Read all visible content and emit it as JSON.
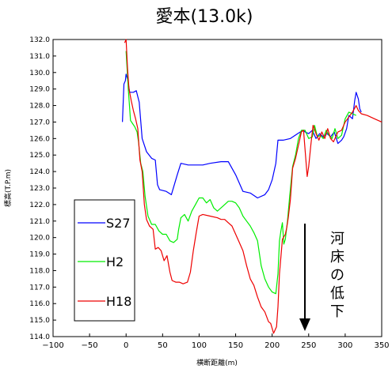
{
  "chart_data": {
    "type": "line",
    "title": "愛本(13.0k)",
    "xlabel": "横断距離(m)",
    "ylabel": "標高(T.P.m)",
    "xlim": [
      -100,
      350
    ],
    "ylim": [
      114.0,
      132.0
    ],
    "xticks": [
      -100,
      -50,
      0,
      50,
      100,
      150,
      200,
      250,
      300,
      350
    ],
    "xtick_labels": [
      "−100",
      "−50",
      "0",
      "50",
      "100",
      "150",
      "200",
      "250",
      "300",
      "350"
    ],
    "yticks": [
      114,
      115,
      116,
      117,
      118,
      119,
      120,
      121,
      122,
      123,
      124,
      125,
      126,
      127,
      128,
      129,
      130,
      131,
      132
    ],
    "ytick_labels": [
      "114.0",
      "115.0",
      "116.0",
      "117.0",
      "118.0",
      "119.0",
      "120.0",
      "121.0",
      "122.0",
      "123.0",
      "124.0",
      "125.0",
      "126.0",
      "127.0",
      "128.0",
      "129.0",
      "130.0",
      "131.0",
      "132.0"
    ],
    "grid": false,
    "legend": "left",
    "annotation": "河床の低下",
    "series": [
      {
        "name": "S27",
        "color": "#0000ff",
        "points": [
          [
            -5,
            127.0
          ],
          [
            -3,
            129.3
          ],
          [
            -1,
            129.5
          ],
          [
            0,
            129.9
          ],
          [
            2,
            129.6
          ],
          [
            5,
            128.8
          ],
          [
            10,
            128.8
          ],
          [
            14,
            128.9
          ],
          [
            18,
            128.2
          ],
          [
            22,
            126.0
          ],
          [
            28,
            125.2
          ],
          [
            35,
            124.8
          ],
          [
            40,
            124.7
          ],
          [
            43,
            123.2
          ],
          [
            46,
            122.9
          ],
          [
            55,
            122.8
          ],
          [
            62,
            122.6
          ],
          [
            70,
            123.8
          ],
          [
            75,
            124.5
          ],
          [
            85,
            124.4
          ],
          [
            95,
            124.4
          ],
          [
            105,
            124.4
          ],
          [
            115,
            124.5
          ],
          [
            130,
            124.6
          ],
          [
            140,
            124.6
          ],
          [
            150,
            123.8
          ],
          [
            160,
            122.8
          ],
          [
            170,
            122.7
          ],
          [
            180,
            122.4
          ],
          [
            190,
            122.6
          ],
          [
            195,
            122.9
          ],
          [
            200,
            123.5
          ],
          [
            205,
            124.5
          ],
          [
            208,
            125.9
          ],
          [
            215,
            125.9
          ],
          [
            225,
            126.0
          ],
          [
            235,
            126.3
          ],
          [
            242,
            126.5
          ],
          [
            245,
            126.4
          ],
          [
            250,
            126.3
          ],
          [
            255,
            126.5
          ],
          [
            260,
            126.0
          ],
          [
            265,
            126.3
          ],
          [
            270,
            126.1
          ],
          [
            275,
            126.3
          ],
          [
            280,
            126.1
          ],
          [
            285,
            126.4
          ],
          [
            290,
            125.7
          ],
          [
            295,
            125.9
          ],
          [
            298,
            126.1
          ],
          [
            302,
            126.6
          ],
          [
            305,
            127.4
          ],
          [
            310,
            127.2
          ],
          [
            313,
            128.3
          ],
          [
            315,
            128.8
          ],
          [
            318,
            128.4
          ],
          [
            320,
            127.8
          ],
          [
            322,
            127.6
          ]
        ]
      },
      {
        "name": "H2",
        "color": "#00ee00",
        "points": [
          [
            0,
            131.3
          ],
          [
            3,
            129.0
          ],
          [
            6,
            127.1
          ],
          [
            9,
            126.9
          ],
          [
            12,
            126.7
          ],
          [
            15,
            126.4
          ],
          [
            17,
            125.8
          ],
          [
            20,
            124.5
          ],
          [
            23,
            124.0
          ],
          [
            26,
            122.5
          ],
          [
            30,
            121.3
          ],
          [
            35,
            120.8
          ],
          [
            40,
            120.8
          ],
          [
            45,
            120.4
          ],
          [
            50,
            120.2
          ],
          [
            55,
            120.2
          ],
          [
            60,
            119.8
          ],
          [
            65,
            119.7
          ],
          [
            70,
            119.9
          ],
          [
            72,
            120.5
          ],
          [
            75,
            121.2
          ],
          [
            80,
            121.4
          ],
          [
            85,
            121.0
          ],
          [
            90,
            121.6
          ],
          [
            95,
            122.0
          ],
          [
            100,
            122.4
          ],
          [
            105,
            122.4
          ],
          [
            110,
            122.1
          ],
          [
            115,
            122.3
          ],
          [
            120,
            121.8
          ],
          [
            125,
            121.6
          ],
          [
            130,
            121.8
          ],
          [
            135,
            122.0
          ],
          [
            140,
            122.2
          ],
          [
            145,
            122.2
          ],
          [
            150,
            122.1
          ],
          [
            155,
            121.8
          ],
          [
            160,
            121.3
          ],
          [
            165,
            121.0
          ],
          [
            170,
            120.7
          ],
          [
            175,
            120.3
          ],
          [
            180,
            119.8
          ],
          [
            185,
            118.3
          ],
          [
            190,
            117.5
          ],
          [
            195,
            117.0
          ],
          [
            200,
            116.7
          ],
          [
            205,
            116.6
          ],
          [
            208,
            117.8
          ],
          [
            210,
            119.8
          ],
          [
            212,
            120.4
          ],
          [
            214,
            120.9
          ],
          [
            216,
            119.6
          ],
          [
            218,
            119.9
          ],
          [
            221,
            121.0
          ],
          [
            224,
            122.5
          ],
          [
            228,
            124.3
          ],
          [
            232,
            125.0
          ],
          [
            236,
            126.0
          ],
          [
            240,
            126.5
          ],
          [
            245,
            126.5
          ],
          [
            250,
            126.0
          ],
          [
            255,
            126.1
          ],
          [
            258,
            126.8
          ],
          [
            262,
            126.1
          ],
          [
            266,
            126.2
          ],
          [
            270,
            126.0
          ],
          [
            274,
            126.5
          ],
          [
            278,
            126.2
          ],
          [
            282,
            126.0
          ],
          [
            286,
            126.6
          ],
          [
            290,
            126.0
          ],
          [
            295,
            126.2
          ],
          [
            300,
            127.2
          ],
          [
            305,
            127.6
          ],
          [
            310,
            127.5
          ],
          [
            315,
            127.4
          ]
        ]
      },
      {
        "name": "H18",
        "color": "#ee0000",
        "points": [
          [
            -2,
            131.8
          ],
          [
            0,
            132.0
          ],
          [
            2,
            130.2
          ],
          [
            4,
            129.0
          ],
          [
            7,
            128.3
          ],
          [
            10,
            127.7
          ],
          [
            13,
            127.2
          ],
          [
            16,
            126.6
          ],
          [
            19,
            124.7
          ],
          [
            22,
            124.0
          ],
          [
            25,
            122.0
          ],
          [
            28,
            121.1
          ],
          [
            32,
            120.7
          ],
          [
            37,
            120.5
          ],
          [
            40,
            119.3
          ],
          [
            44,
            119.4
          ],
          [
            48,
            119.2
          ],
          [
            52,
            118.6
          ],
          [
            56,
            118.9
          ],
          [
            60,
            117.9
          ],
          [
            63,
            117.4
          ],
          [
            68,
            117.3
          ],
          [
            73,
            117.3
          ],
          [
            78,
            117.2
          ],
          [
            84,
            117.3
          ],
          [
            88,
            117.9
          ],
          [
            92,
            119.2
          ],
          [
            96,
            120.3
          ],
          [
            100,
            121.3
          ],
          [
            105,
            121.4
          ],
          [
            115,
            121.3
          ],
          [
            125,
            121.2
          ],
          [
            130,
            121.1
          ],
          [
            135,
            121.1
          ],
          [
            140,
            120.9
          ],
          [
            145,
            120.7
          ],
          [
            150,
            120.2
          ],
          [
            155,
            119.7
          ],
          [
            160,
            119.2
          ],
          [
            165,
            118.3
          ],
          [
            170,
            117.5
          ],
          [
            175,
            117.1
          ],
          [
            180,
            116.4
          ],
          [
            185,
            115.8
          ],
          [
            190,
            115.5
          ],
          [
            195,
            114.9
          ],
          [
            198,
            114.8
          ],
          [
            202,
            114.2
          ],
          [
            206,
            114.6
          ],
          [
            208,
            115.8
          ],
          [
            210,
            117.8
          ],
          [
            214,
            119.9
          ],
          [
            218,
            120.2
          ],
          [
            220,
            120.6
          ],
          [
            222,
            121.2
          ],
          [
            225,
            122.3
          ],
          [
            228,
            124.2
          ],
          [
            232,
            124.8
          ],
          [
            236,
            125.6
          ],
          [
            240,
            126.4
          ],
          [
            243,
            126.5
          ],
          [
            246,
            124.8
          ],
          [
            248,
            123.7
          ],
          [
            250,
            124.3
          ],
          [
            253,
            125.6
          ],
          [
            256,
            126.8
          ],
          [
            260,
            126.3
          ],
          [
            264,
            125.9
          ],
          [
            268,
            126.4
          ],
          [
            272,
            126.0
          ],
          [
            276,
            126.6
          ],
          [
            280,
            126.0
          ],
          [
            284,
            125.8
          ],
          [
            290,
            126.4
          ],
          [
            295,
            126.5
          ],
          [
            300,
            127.0
          ],
          [
            305,
            127.3
          ],
          [
            310,
            127.6
          ],
          [
            315,
            128.0
          ],
          [
            318,
            127.7
          ],
          [
            322,
            127.5
          ],
          [
            330,
            127.4
          ],
          [
            340,
            127.2
          ],
          [
            350,
            127.0
          ]
        ]
      }
    ]
  }
}
